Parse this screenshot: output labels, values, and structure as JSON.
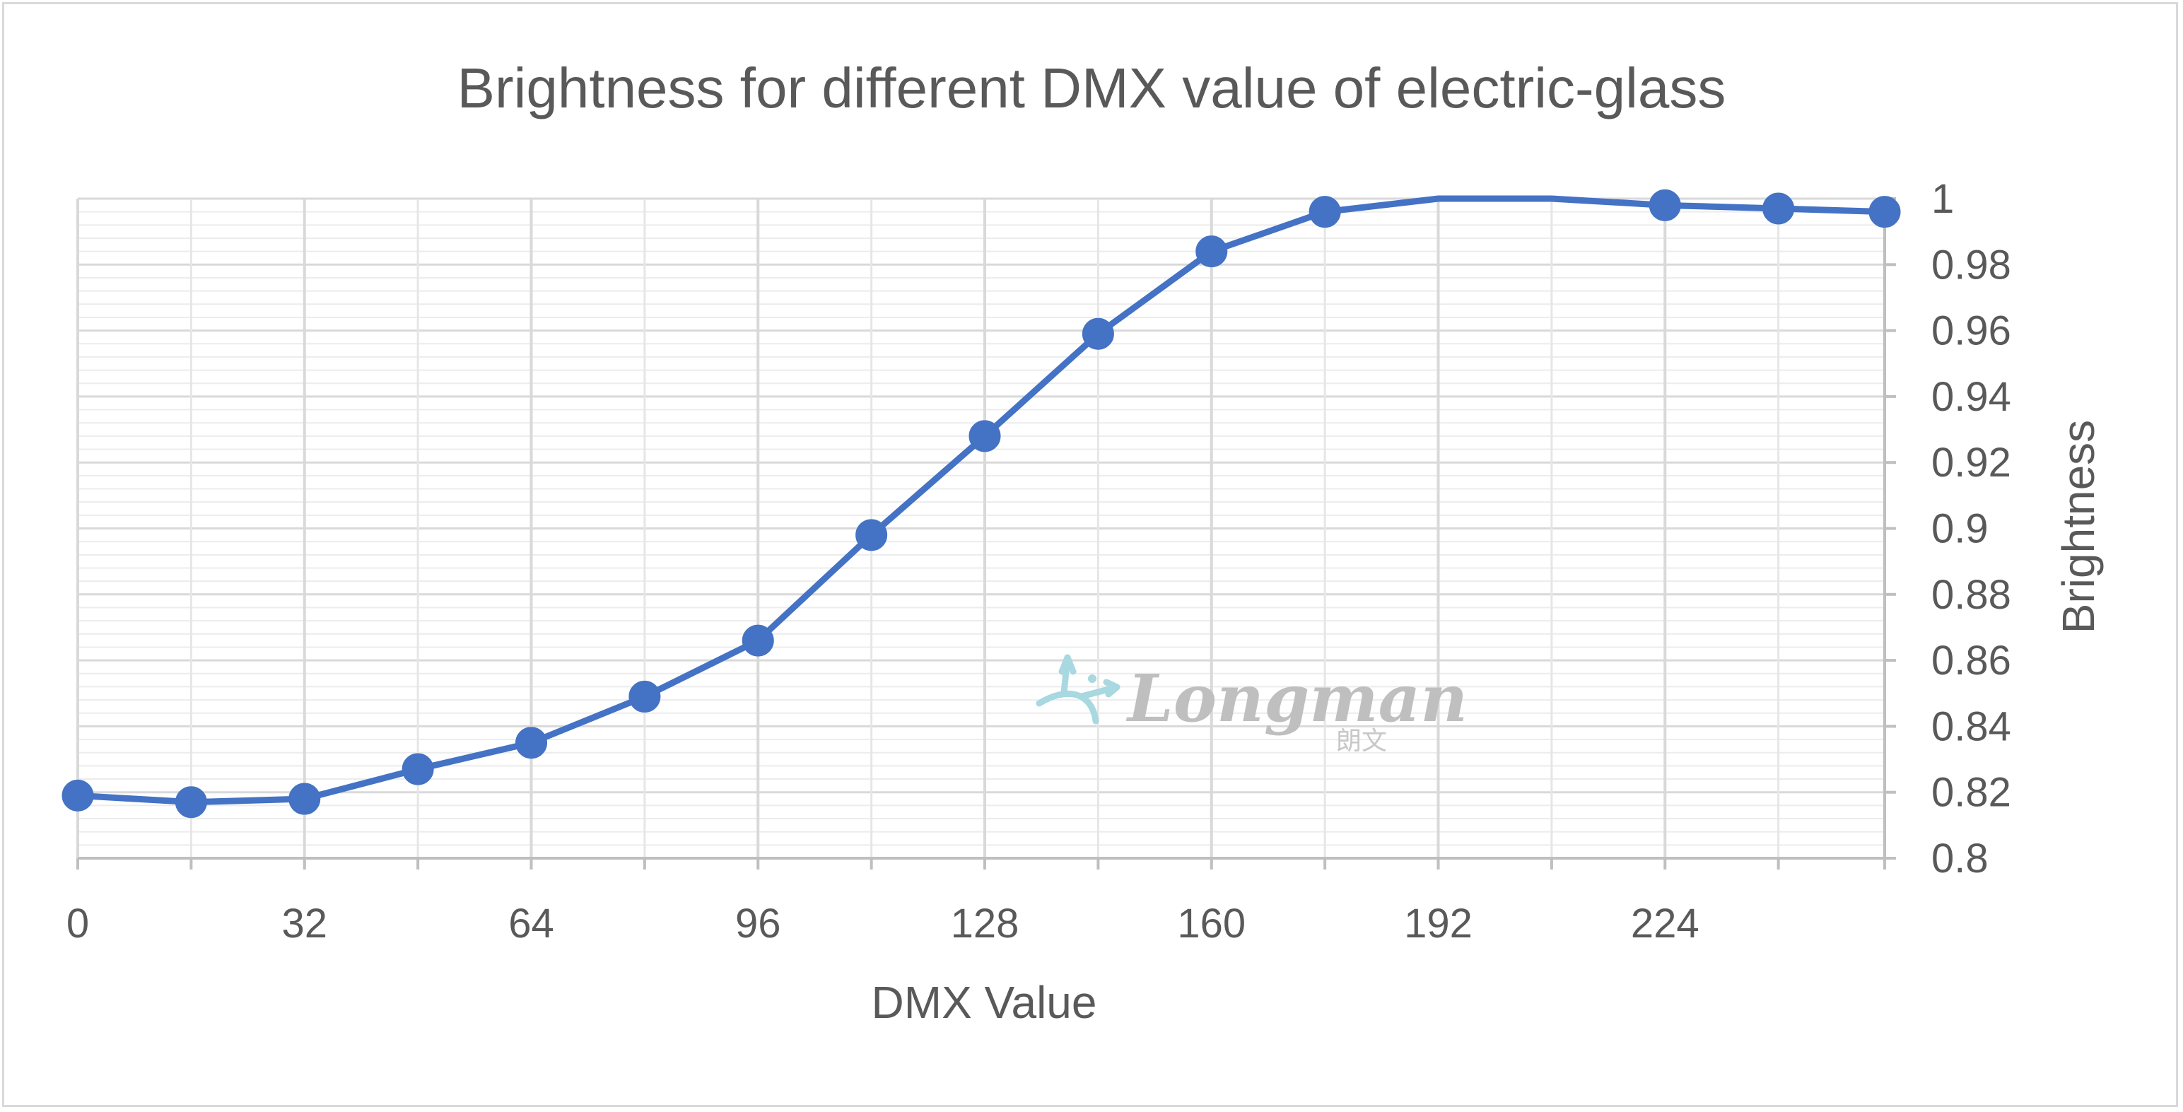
{
  "chart_data": {
    "type": "line",
    "title": "Brightness for different DMX value of electric-glass",
    "xlabel": "DMX Value",
    "ylabel": "Brightness",
    "xlim": [
      0,
      255
    ],
    "ylim": [
      0.8,
      1.0
    ],
    "x_ticks": [
      0,
      32,
      64,
      96,
      128,
      160,
      192,
      224
    ],
    "y_ticks": [
      "0.8",
      "0.82",
      "0.84",
      "0.86",
      "0.88",
      "0.9",
      "0.92",
      "0.94",
      "0.96",
      "0.98",
      "1"
    ],
    "y_axis_position": "right",
    "grid": true,
    "series": [
      {
        "color": "#4472c4",
        "x": [
          0,
          16,
          32,
          48,
          64,
          80,
          96,
          112,
          128,
          144,
          160,
          176,
          192,
          208,
          224,
          240,
          255
        ],
        "y": [
          0.819,
          0.817,
          0.818,
          0.827,
          0.835,
          0.849,
          0.866,
          0.898,
          0.928,
          0.959,
          0.984,
          0.996,
          1.0,
          1.0,
          0.998,
          0.997,
          0.996
        ],
        "markers_shown": [
          true,
          true,
          true,
          true,
          true,
          true,
          true,
          true,
          true,
          true,
          true,
          true,
          false,
          false,
          true,
          true,
          true
        ]
      }
    ]
  },
  "watermark": {
    "text": "Longman",
    "subtext": "朗文"
  }
}
